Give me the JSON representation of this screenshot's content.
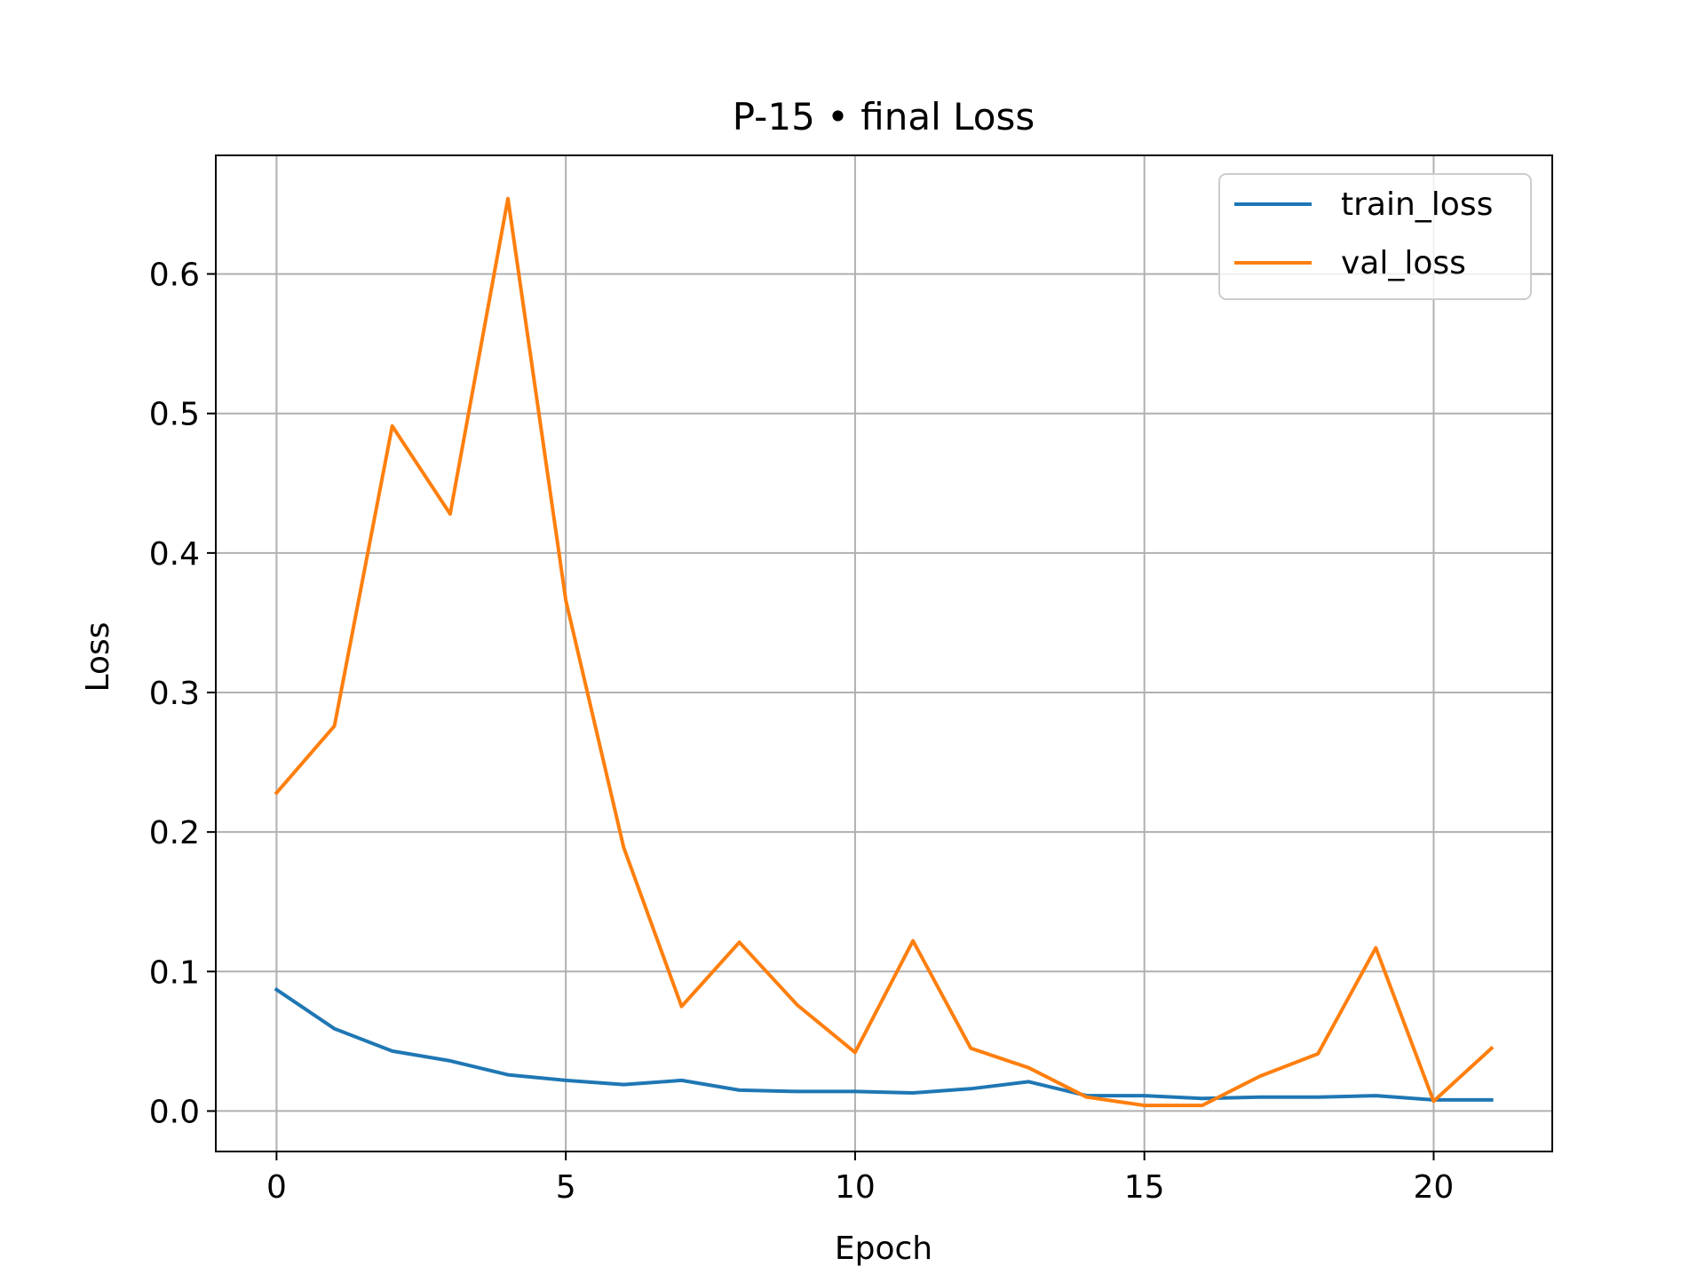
{
  "chart_data": {
    "type": "line",
    "title": "P-15 • final Loss",
    "xlabel": "Epoch",
    "ylabel": "Loss",
    "xlim": [
      -1.05,
      22.05
    ],
    "ylim": [
      -0.029,
      0.685
    ],
    "xticks": [
      0,
      5,
      10,
      15,
      20
    ],
    "xtick_labels": [
      "0",
      "5",
      "10",
      "15",
      "20"
    ],
    "yticks": [
      0.0,
      0.1,
      0.2,
      0.3,
      0.4,
      0.5,
      0.6
    ],
    "ytick_labels": [
      "0.0",
      "0.1",
      "0.2",
      "0.3",
      "0.4",
      "0.5",
      "0.6"
    ],
    "grid": true,
    "legend_position": "top-right",
    "x": [
      0,
      1,
      2,
      3,
      4,
      5,
      6,
      7,
      8,
      9,
      10,
      11,
      12,
      13,
      14,
      15,
      16,
      17,
      18,
      19,
      20,
      21
    ],
    "series": [
      {
        "name": "train_loss",
        "color": "#1f77b4",
        "values": [
          0.087,
          0.059,
          0.043,
          0.036,
          0.026,
          0.022,
          0.019,
          0.022,
          0.015,
          0.014,
          0.014,
          0.013,
          0.016,
          0.021,
          0.011,
          0.011,
          0.009,
          0.01,
          0.01,
          0.011,
          0.008,
          0.008
        ]
      },
      {
        "name": "val_loss",
        "color": "#ff7f0e",
        "values": [
          0.228,
          0.276,
          0.491,
          0.428,
          0.654,
          0.366,
          0.189,
          0.075,
          0.121,
          0.076,
          0.042,
          0.122,
          0.045,
          0.031,
          0.01,
          0.004,
          0.004,
          0.025,
          0.041,
          0.117,
          0.007,
          0.045
        ]
      }
    ]
  }
}
